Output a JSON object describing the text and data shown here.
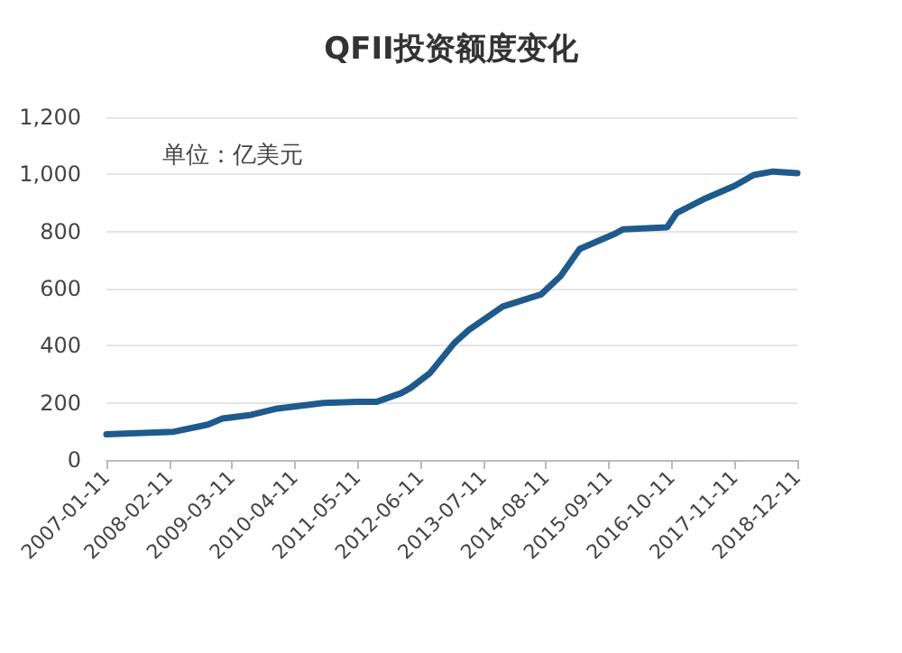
{
  "chart_data": {
    "type": "line",
    "title": "QFII投资额度变化",
    "annotations": [
      "单位：亿美元"
    ],
    "x": [
      "2007-01-11",
      "2008-03-11",
      "2008-10-11",
      "2009-01-11",
      "2009-07-11",
      "2009-12-11",
      "2010-10-11",
      "2011-05-11",
      "2011-09-11",
      "2012-02-11",
      "2012-04-11",
      "2012-08-11",
      "2013-01-11",
      "2013-04-11",
      "2013-11-11",
      "2014-07-11",
      "2014-11-11",
      "2015-03-11",
      "2015-10-11",
      "2015-12-11",
      "2016-09-11",
      "2016-11-11",
      "2017-05-11",
      "2017-11-11",
      "2018-03-11",
      "2018-07-11",
      "2018-12-11"
    ],
    "series": [
      {
        "color": "#1f5a8c",
        "values": [
          90,
          99,
          124,
          145,
          158,
          179,
          200,
          204,
          204,
          234,
          253,
          305,
          410,
          455,
          537,
          580,
          644,
          739,
          790,
          808,
          815,
          865,
          916,
          960,
          998,
          1010,
          1004
        ]
      }
    ],
    "xlim": [
      "2007-01-11",
      "2018-12-11"
    ],
    "xticks": [
      "2007-01-11",
      "2008-02-11",
      "2009-03-11",
      "2010-04-11",
      "2011-05-11",
      "2012-06-11",
      "2013-07-11",
      "2014-08-11",
      "2015-09-11",
      "2016-10-11",
      "2017-11-11",
      "2018-12-11"
    ],
    "ylim": [
      0,
      1200
    ],
    "yticks": [
      0,
      200,
      400,
      600,
      800,
      {
        "value": 1000,
        "label": "1,000"
      },
      {
        "value": 1200,
        "label": "1,200"
      }
    ],
    "grid": "y",
    "marker": "none",
    "line_style": "solid"
  }
}
